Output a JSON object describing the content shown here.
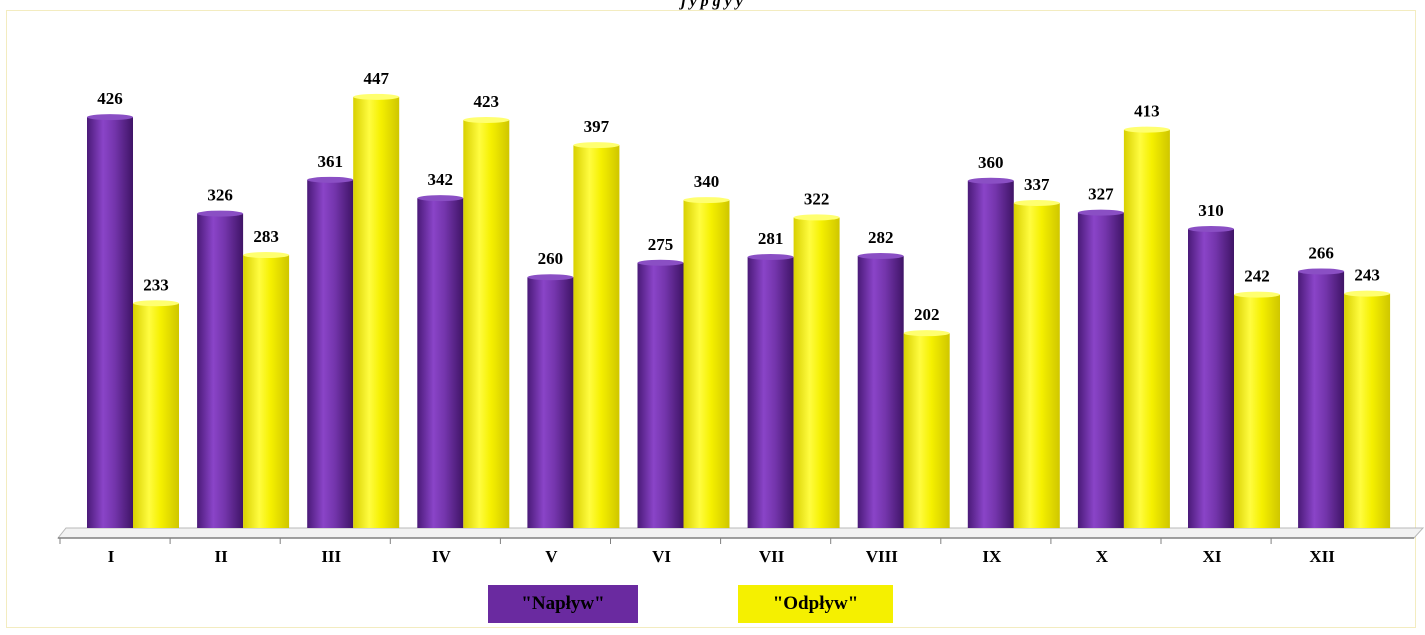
{
  "chart_data": {
    "type": "bar",
    "title": "",
    "title_visible_fragment": "j                    y    p           g    y         y",
    "categories": [
      "I",
      "II",
      "III",
      "IV",
      "V",
      "VI",
      "VII",
      "VIII",
      "IX",
      "X",
      "XI",
      "XII"
    ],
    "series": [
      {
        "name": "\"Napływ\"",
        "color": "#6a2aa0",
        "values": [
          426,
          326,
          361,
          342,
          260,
          275,
          281,
          282,
          360,
          327,
          310,
          266
        ]
      },
      {
        "name": "\"Odpływ\"",
        "color": "#f5f000",
        "values": [
          233,
          283,
          447,
          423,
          397,
          340,
          322,
          202,
          337,
          413,
          242,
          243
        ]
      }
    ],
    "ylim": [
      0,
      480
    ],
    "grid": false,
    "legend_position": "bottom"
  },
  "legend": {
    "inflow_label": "\"Napływ\"",
    "outflow_label": "\"Odpływ\"",
    "inflow_color": "#6a2aa0",
    "outflow_color": "#f5f000"
  }
}
